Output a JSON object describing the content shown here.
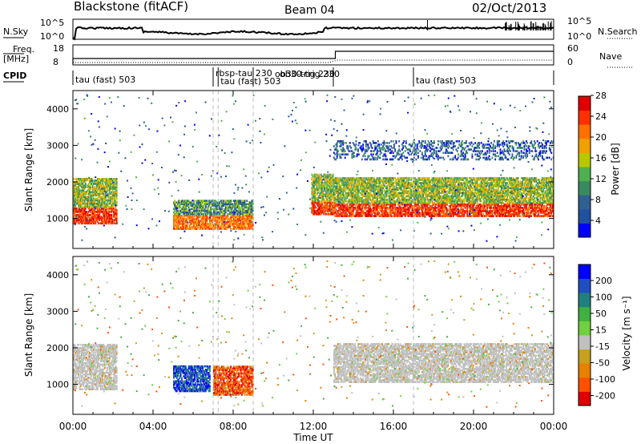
{
  "header": {
    "station": "Blackstone (fitACF)",
    "beam": "Beam 04",
    "date": "02/Oct/2013"
  },
  "strips": {
    "nsky": {
      "label": "N.Sky",
      "ticks": [
        "10^5",
        "10^0"
      ],
      "right_label": "N.Search",
      "right_ticks": [
        "10^5",
        "10^0"
      ]
    },
    "freq": {
      "label_line1": "Freq.",
      "label_line2": "[MHz]",
      "ticks": [
        "18",
        "8"
      ],
      "right_label": "Nave",
      "right_ticks": [
        "60",
        "0"
      ]
    },
    "cpid": {
      "label": "CPID"
    }
  },
  "cpid_segments": [
    {
      "start_h": 0.0,
      "label": "tau (fast) 503"
    },
    {
      "start_h": 7.0,
      "label": "rbsp-tau 230"
    },
    {
      "start_h": 7.25,
      "label": "tau (fast) 503"
    },
    {
      "start_h": 9.0,
      "label": "ob30-trig 230"
    },
    {
      "start_h": 13.0,
      "label": "ob30-trig 230"
    },
    {
      "start_h": 17.0,
      "label": "tau (fast) 503"
    }
  ],
  "colors": {
    "power_scale": [
      "#0000ff",
      "#2050a0",
      "#306090",
      "#3a8a60",
      "#50b050",
      "#b8c800",
      "#f0a000",
      "#ff7000",
      "#ff3000",
      "#e00000"
    ],
    "velocity_scale": [
      "#0000ff",
      "#2050c0",
      "#208080",
      "#40b040",
      "#70d040",
      "#c0c0c0",
      "#c8a020",
      "#e88000",
      "#ff5000",
      "#e00000"
    ]
  },
  "chart_data": [
    {
      "type": "heatmap",
      "panel": "power",
      "xlabel": "",
      "ylabel": "Slant Range [km]",
      "xlim": [
        0,
        24
      ],
      "ylim": [
        180,
        4500
      ],
      "yticks": [
        "1000",
        "2000",
        "3000",
        "4000"
      ],
      "colorbar": {
        "label": "Power [dB]",
        "ticks": [
          "4",
          "8",
          "12",
          "16",
          "20",
          "24",
          "28"
        ],
        "range": [
          0,
          30
        ]
      },
      "echo_regions": [
        {
          "t": [
            0.0,
            2.2
          ],
          "range_km": [
            850,
            2100
          ],
          "level": "high"
        },
        {
          "t": [
            5.0,
            9.0
          ],
          "range_km": [
            700,
            1500
          ],
          "level": "medium"
        },
        {
          "t": [
            11.9,
            13.0
          ],
          "range_km": [
            1100,
            2200
          ],
          "level": "high"
        },
        {
          "t": [
            13.0,
            24.0
          ],
          "range_km": [
            1050,
            2100
          ],
          "level": "high"
        },
        {
          "t": [
            13.0,
            24.0
          ],
          "range_km": [
            2600,
            3100
          ],
          "level": "low"
        }
      ]
    },
    {
      "type": "heatmap",
      "panel": "velocity",
      "xlabel": "Time UT",
      "ylabel": "Slant Range [km]",
      "xlim": [
        0,
        24
      ],
      "ylim": [
        180,
        4500
      ],
      "xticks": [
        "00:00",
        "04:00",
        "08:00",
        "12:00",
        "16:00",
        "20:00",
        "00:00"
      ],
      "yticks": [
        "1000",
        "2000",
        "3000",
        "4000"
      ],
      "colorbar": {
        "label": "Velocity [m s⁻¹]",
        "ticks": [
          "200",
          "100",
          "50",
          "15",
          "-15",
          "-50",
          "-100",
          "-200"
        ],
        "range": [
          -250,
          250
        ]
      },
      "echo_regions": [
        {
          "t": [
            0.0,
            2.2
          ],
          "range_km": [
            850,
            2100
          ],
          "level": "ground"
        },
        {
          "t": [
            5.0,
            6.8
          ],
          "range_km": [
            800,
            1500
          ],
          "level": "toward"
        },
        {
          "t": [
            7.0,
            9.0
          ],
          "range_km": [
            700,
            1500
          ],
          "level": "away"
        },
        {
          "t": [
            13.0,
            24.0
          ],
          "range_km": [
            1050,
            2100
          ],
          "level": "ground"
        }
      ]
    }
  ]
}
